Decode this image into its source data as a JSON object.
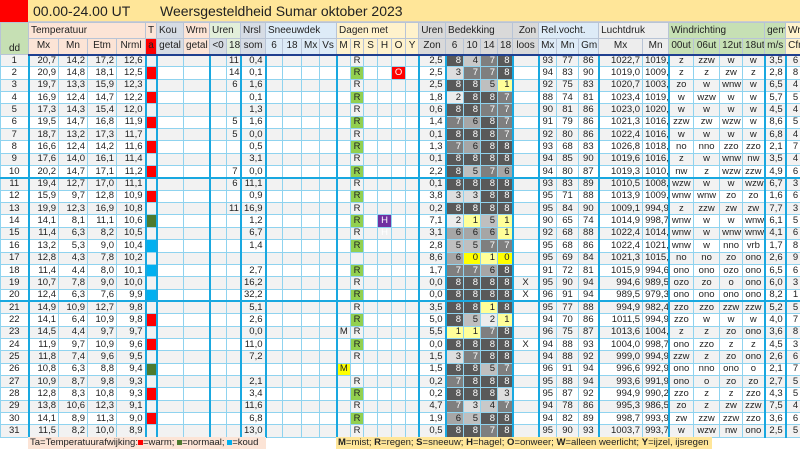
{
  "title": {
    "period": "00.00-24.00 UT",
    "name": "Weersgesteldheid Sumar oktober 2023"
  },
  "headers": {
    "dd": "dd",
    "temperatuur": "Temperatuur",
    "mx": "Mx",
    "mn": "Mn",
    "etm": "Etm",
    "nrml": "Nrml",
    "t": "T",
    "a": "a",
    "kou": "Kou",
    "kou2": "getal",
    "wrm": "Wrm",
    "wrm2": "getal",
    "uren": "Uren",
    "lt0": "<0",
    "u18": "18",
    "nrsl": "Nrsl",
    "som": "som",
    "sneeuwdek": "Sneeuwdek",
    "s6": "6",
    "s18": "18",
    "smx": "Mx",
    "vs": "Vs",
    "dagen": "Dagen met",
    "w": "W",
    "M": "M",
    "R": "R",
    "S": "S",
    "H": "H",
    "O": "O",
    "Y": "Y",
    "urenzon": "Uren",
    "zon": "Zon",
    "bedekking": "Bedekking",
    "b6": "6",
    "b10": "10",
    "b14": "14",
    "b18": "18",
    "zonloos1": "Zon",
    "zonloos2": "loos",
    "relvocht": "Rel.vocht.",
    "rvmx": "Mx",
    "rvmn": "Mn",
    "rvgm": "Gm",
    "luchtdruk": "Luchtdruk",
    "ldmx": "Mx",
    "ldmn": "Mn",
    "windrichting": "Windrichting",
    "w00": "00ut",
    "w06": "06ut",
    "w12": "12ut",
    "w18": "18ut",
    "gem": "gem",
    "ms": "m/s",
    "wr": "Wr",
    "cfr": "Cfr"
  },
  "colors": {
    "warm": "#ff0000",
    "normaal": "#4e7a2f",
    "koud": "#00b0f0",
    "regen": "#92d050",
    "mist": "#ffff00",
    "onweer": "#ff0000",
    "hagel": "#7030a0"
  },
  "rows": [
    [
      "1",
      "20,7",
      "14,2",
      "17,2",
      "12,6",
      "warm",
      "",
      "",
      "",
      "11",
      "0,4",
      "",
      "",
      "",
      "",
      "",
      "R",
      "",
      "",
      "",
      "",
      "2,5",
      "8",
      "4",
      "7",
      "8",
      "",
      "93",
      "77",
      "86",
      "1022,7",
      "1019,0",
      "z",
      "zzw",
      "w",
      "w",
      "3,5",
      "6"
    ],
    [
      "2",
      "20,9",
      "14,8",
      "18,1",
      "12,5",
      "warm",
      "",
      "",
      "",
      "14",
      "0,1",
      "",
      "",
      "",
      "",
      "",
      "R",
      "",
      "",
      "O",
      "",
      "2,5",
      "3",
      "7",
      "7",
      "8",
      "",
      "94",
      "83",
      "90",
      "1019,0",
      "1009,5",
      "z",
      "z",
      "zw",
      "z",
      "2,8",
      "8"
    ],
    [
      "3",
      "19,7",
      "13,3",
      "15,9",
      "12,3",
      "warm",
      "",
      "",
      "",
      "6",
      "1,6",
      "",
      "",
      "",
      "",
      "",
      "R",
      "",
      "",
      "",
      "",
      "2,5",
      "8",
      "8",
      "5",
      "1",
      "",
      "92",
      "75",
      "83",
      "1020,7",
      "1003,4",
      "zo",
      "w",
      "wnw",
      "w",
      "6,5",
      "4"
    ],
    [
      "4",
      "16,9",
      "12,4",
      "14,7",
      "12,2",
      "warm",
      "",
      "",
      "",
      "",
      "0,1",
      "",
      "",
      "",
      "",
      "",
      "R",
      "",
      "",
      "",
      "",
      "1,8",
      "2",
      "8",
      "8",
      "7",
      "",
      "88",
      "74",
      "81",
      "1023,4",
      "1019,6",
      "w",
      "wzw",
      "w",
      "w",
      "5,7",
      "5"
    ],
    [
      "5",
      "17,3",
      "14,3",
      "15,4",
      "12,0",
      "warm",
      "",
      "",
      "",
      "",
      "1,3",
      "",
      "",
      "",
      "",
      "",
      "R",
      "",
      "",
      "",
      "",
      "0,6",
      "8",
      "8",
      "7",
      "7",
      "",
      "90",
      "81",
      "86",
      "1023,0",
      "1020,0",
      "w",
      "w",
      "w",
      "w",
      "4,5",
      "4"
    ],
    [
      "6",
      "19,5",
      "14,7",
      "16,8",
      "11,9",
      "warm",
      "",
      "",
      "",
      "5",
      "1,6",
      "",
      "",
      "",
      "",
      "",
      "R",
      "",
      "",
      "",
      "",
      "1,4",
      "7",
      "6",
      "8",
      "7",
      "",
      "91",
      "79",
      "86",
      "1021,3",
      "1016,9",
      "zzw",
      "zw",
      "wzw",
      "w",
      "8,6",
      "5"
    ],
    [
      "7",
      "18,7",
      "13,2",
      "17,3",
      "11,7",
      "warm",
      "",
      "",
      "",
      "5",
      "0,0",
      "",
      "",
      "",
      "",
      "",
      "R",
      "",
      "",
      "",
      "",
      "0,1",
      "8",
      "8",
      "8",
      "7",
      "",
      "92",
      "80",
      "86",
      "1022,4",
      "1016,3",
      "w",
      "w",
      "w",
      "w",
      "6,8",
      "4"
    ],
    [
      "8",
      "16,6",
      "12,4",
      "14,2",
      "11,6",
      "warm",
      "",
      "",
      "",
      "",
      "0,5",
      "",
      "",
      "",
      "",
      "",
      "R",
      "",
      "",
      "",
      "",
      "1,3",
      "7",
      "6",
      "8",
      "8",
      "",
      "93",
      "68",
      "83",
      "1026,8",
      "1018,3",
      "no",
      "nno",
      "zzo",
      "zzo",
      "2,1",
      "7"
    ],
    [
      "9",
      "17,6",
      "14,0",
      "16,1",
      "11,4",
      "warm",
      "",
      "",
      "",
      "",
      "3,1",
      "",
      "",
      "",
      "",
      "",
      "R",
      "",
      "",
      "",
      "",
      "0,1",
      "8",
      "8",
      "8",
      "8",
      "",
      "94",
      "85",
      "90",
      "1019,6",
      "1016,3",
      "z",
      "w",
      "wnw",
      "nw",
      "3,5",
      "4"
    ],
    [
      "10",
      "20,2",
      "14,7",
      "17,1",
      "11,2",
      "warm",
      "",
      "",
      "",
      "7",
      "0,0",
      "",
      "",
      "",
      "",
      "",
      "R",
      "",
      "",
      "",
      "",
      "2,2",
      "8",
      "5",
      "7",
      "6",
      "",
      "94",
      "80",
      "87",
      "1019,3",
      "1010,5",
      "nw",
      "z",
      "wzw",
      "zzw",
      "4,9",
      "6"
    ],
    [
      "11",
      "19,4",
      "12,7",
      "17,0",
      "11,1",
      "warm",
      "",
      "",
      "",
      "6",
      "11,1",
      "",
      "",
      "",
      "",
      "",
      "R",
      "",
      "",
      "",
      "",
      "0,1",
      "8",
      "8",
      "8",
      "8",
      "",
      "93",
      "83",
      "89",
      "1010,5",
      "1008,1",
      "wzw",
      "w",
      "w",
      "wzw",
      "6,7",
      "3"
    ],
    [
      "12",
      "15,9",
      "9,7",
      "12,8",
      "10,9",
      "warm",
      "",
      "",
      "",
      "",
      "0,9",
      "",
      "",
      "",
      "",
      "",
      "R",
      "",
      "",
      "",
      "",
      "3,8",
      "3",
      "3",
      "8",
      "8",
      "",
      "95",
      "71",
      "88",
      "1013,9",
      "1009,1",
      "wnw",
      "wnw",
      "zo",
      "zo",
      "1,6",
      "6"
    ],
    [
      "13",
      "19,9",
      "12,3",
      "16,9",
      "10,8",
      "warm",
      "",
      "",
      "",
      "11",
      "16,9",
      "",
      "",
      "",
      "",
      "",
      "R",
      "",
      "",
      "",
      "",
      "0,2",
      "8",
      "8",
      "8",
      "8",
      "",
      "95",
      "84",
      "90",
      "1009,1",
      "994,9",
      "z",
      "zzw",
      "zw",
      "zw",
      "7,7",
      "3"
    ],
    [
      "14",
      "14,1",
      "8,1",
      "11,1",
      "10,6",
      "normaal",
      "",
      "",
      "",
      "",
      "1,2",
      "",
      "",
      "",
      "",
      "",
      "R",
      "",
      "H",
      "",
      "",
      "7,1",
      "2",
      "1",
      "5",
      "1",
      "",
      "90",
      "65",
      "74",
      "1014,9",
      "998,7",
      "wnw",
      "w",
      "w",
      "wnw",
      "6,1",
      "5"
    ],
    [
      "15",
      "11,4",
      "6,3",
      "8,2",
      "10,5",
      "koud",
      "",
      "",
      "",
      "",
      "6,7",
      "",
      "",
      "",
      "",
      "",
      "R",
      "",
      "H",
      "",
      "",
      "3,1",
      "6",
      "6",
      "6",
      "1",
      "",
      "92",
      "68",
      "88",
      "1022,4",
      "1014,6",
      "wnw",
      "w",
      "wnw",
      "wnw",
      "4,1",
      "6"
    ],
    [
      "16",
      "13,2",
      "5,3",
      "9,0",
      "10,4",
      "koud",
      "",
      "",
      "",
      "",
      "1,4",
      "",
      "",
      "",
      "",
      "",
      "R",
      "",
      "",
      "",
      "",
      "2,8",
      "5",
      "5",
      "7",
      "7",
      "",
      "95",
      "68",
      "86",
      "1022,4",
      "1021,0",
      "wnw",
      "w",
      "nno",
      "vrb",
      "1,7",
      "8"
    ],
    [
      "17",
      "12,8",
      "4,3",
      "7,8",
      "10,2",
      "koud",
      "",
      "",
      "",
      "",
      "",
      "",
      "",
      "",
      "",
      "",
      "",
      "",
      "",
      "",
      "",
      "8,6",
      "6",
      "0",
      "1",
      "0",
      "",
      "95",
      "69",
      "84",
      "1021,3",
      "1015,9",
      "no",
      "no",
      "zo",
      "ono",
      "2,6",
      "9"
    ],
    [
      "18",
      "11,4",
      "4,4",
      "8,0",
      "10,1",
      "koud",
      "",
      "",
      "",
      "",
      "2,7",
      "",
      "",
      "",
      "",
      "",
      "R",
      "",
      "",
      "",
      "",
      "1,7",
      "7",
      "7",
      "6",
      "8",
      "",
      "91",
      "72",
      "81",
      "1015,9",
      "994,6",
      "ono",
      "ono",
      "ozo",
      "ono",
      "6,5",
      "6"
    ],
    [
      "19",
      "10,7",
      "7,8",
      "9,0",
      "10,0",
      "normaal",
      "",
      "",
      "",
      "",
      "16,2",
      "",
      "",
      "",
      "",
      "",
      "R",
      "",
      "",
      "",
      "",
      "0,0",
      "8",
      "8",
      "8",
      "8",
      "X",
      "95",
      "90",
      "94",
      "994,6",
      "989,5",
      "ozo",
      "zo",
      "o",
      "ono",
      "6,0",
      "3"
    ],
    [
      "20",
      "12,4",
      "6,3",
      "7,6",
      "9,9",
      "koud",
      "",
      "",
      "",
      "",
      "32,2",
      "",
      "",
      "",
      "",
      "",
      "R",
      "",
      "",
      "",
      "",
      "0,0",
      "8",
      "8",
      "8",
      "8",
      "X",
      "96",
      "91",
      "94",
      "989,5",
      "979,3",
      "ono",
      "ono",
      "ono",
      "ono",
      "8,2",
      "1"
    ],
    [
      "21",
      "14,9",
      "10,9",
      "12,7",
      "9,8",
      "warm",
      "",
      "",
      "",
      "",
      "5,1",
      "",
      "",
      "",
      "",
      "",
      "R",
      "",
      "",
      "",
      "",
      "3,5",
      "8",
      "8",
      "1",
      "8",
      "",
      "95",
      "77",
      "88",
      "994,9",
      "982,4",
      "zzo",
      "zzo",
      "zzw",
      "zzw",
      "5,2",
      "5"
    ],
    [
      "22",
      "14,1",
      "6,4",
      "10,9",
      "9,8",
      "warm",
      "",
      "",
      "",
      "",
      "2,6",
      "",
      "",
      "",
      "",
      "",
      "R",
      "",
      "",
      "",
      "",
      "5,0",
      "8",
      "5",
      "2",
      "1",
      "",
      "94",
      "70",
      "86",
      "1011,5",
      "994,9",
      "zzo",
      "w",
      "w",
      "w",
      "4,0",
      "7"
    ],
    [
      "23",
      "14,5",
      "4,4",
      "9,7",
      "9,7",
      "normaal",
      "",
      "",
      "",
      "",
      "0,0",
      "",
      "",
      "",
      "",
      "M",
      "R",
      "",
      "",
      "",
      "",
      "5,5",
      "1",
      "1",
      "7",
      "8",
      "",
      "96",
      "75",
      "87",
      "1013,6",
      "1004,0",
      "z",
      "z",
      "zo",
      "ono",
      "3,6",
      "8"
    ],
    [
      "24",
      "11,9",
      "9,7",
      "10,9",
      "9,6",
      "warm",
      "",
      "",
      "",
      "",
      "11,0",
      "",
      "",
      "",
      "",
      "",
      "R",
      "",
      "",
      "",
      "",
      "0,0",
      "8",
      "8",
      "8",
      "8",
      "X",
      "94",
      "88",
      "93",
      "1004,0",
      "998,7",
      "ono",
      "zzo",
      "z",
      "z",
      "4,5",
      "3"
    ],
    [
      "25",
      "11,8",
      "7,4",
      "9,6",
      "9,5",
      "normaal",
      "",
      "",
      "",
      "",
      "7,2",
      "",
      "",
      "",
      "",
      "",
      "R",
      "",
      "",
      "",
      "",
      "1,5",
      "3",
      "7",
      "8",
      "8",
      "",
      "94",
      "88",
      "92",
      "999,0",
      "994,9",
      "zzw",
      "z",
      "zo",
      "ono",
      "2,6",
      "6"
    ],
    [
      "26",
      "10,8",
      "6,3",
      "8,8",
      "9,4",
      "normaal",
      "",
      "",
      "",
      "",
      "",
      "",
      "",
      "",
      "",
      "M",
      "",
      "",
      "",
      "",
      "",
      "1,5",
      "8",
      "8",
      "5",
      "7",
      "",
      "96",
      "91",
      "94",
      "996,6",
      "992,9",
      "ono",
      "nno",
      "ono",
      "o",
      "2,1",
      "7"
    ],
    [
      "27",
      "10,9",
      "8,7",
      "9,8",
      "9,3",
      "normaal",
      "",
      "",
      "",
      "",
      "2,1",
      "",
      "",
      "",
      "",
      "",
      "R",
      "",
      "",
      "",
      "",
      "0,2",
      "7",
      "8",
      "8",
      "8",
      "",
      "95",
      "88",
      "94",
      "993,6",
      "991,9",
      "ono",
      "o",
      "zo",
      "zo",
      "2,7",
      "5"
    ],
    [
      "28",
      "12,8",
      "8,3",
      "10,8",
      "9,3",
      "warm",
      "",
      "",
      "",
      "",
      "3,4",
      "",
      "",
      "",
      "",
      "",
      "R",
      "",
      "",
      "",
      "",
      "0,2",
      "8",
      "8",
      "8",
      "3",
      "",
      "95",
      "87",
      "92",
      "994,9",
      "990,2",
      "zzo",
      "z",
      "z",
      "zzo",
      "4,3",
      "5"
    ],
    [
      "29",
      "13,8",
      "10,6",
      "12,3",
      "9,1",
      "warm",
      "",
      "",
      "",
      "",
      "11,6",
      "",
      "",
      "",
      "",
      "",
      "R",
      "",
      "",
      "",
      "",
      "4,7",
      "7",
      "3",
      "4",
      "7",
      "",
      "94",
      "78",
      "86",
      "995,3",
      "986,5",
      "zo",
      "z",
      "zw",
      "zzw",
      "7,5",
      "4"
    ],
    [
      "30",
      "14,1",
      "8,9",
      "11,3",
      "9,0",
      "warm",
      "",
      "",
      "",
      "",
      "6,8",
      "",
      "",
      "",
      "",
      "",
      "R",
      "",
      "",
      "",
      "",
      "1,9",
      "6",
      "5",
      "8",
      "8",
      "",
      "94",
      "82",
      "89",
      "998,7",
      "993,9",
      "zw",
      "zzw",
      "zzw",
      "zzo",
      "3,6",
      "6"
    ],
    [
      "31",
      "11,5",
      "8,2",
      "10,0",
      "8,9",
      "warm",
      "",
      "",
      "",
      "",
      "13,0",
      "",
      "",
      "",
      "",
      "",
      "R",
      "",
      "",
      "",
      "",
      "0,5",
      "8",
      "8",
      "7",
      "8",
      "",
      "95",
      "90",
      "93",
      "1003,7",
      "993,7",
      "w",
      "wzw",
      "nw",
      "ono",
      "2,5",
      "5"
    ]
  ],
  "footer": {
    "ta_label": "Ta=Temperatuurafwijking:",
    "warm": "=warm;",
    "normaal": "=normaal;",
    "koud": "=koud",
    "legend": [
      {
        "k": "M",
        "v": "=mist; "
      },
      {
        "k": "R",
        "v": "=regen; "
      },
      {
        "k": "S",
        "v": "=sneeuw; "
      },
      {
        "k": "H",
        "v": "=hagel; "
      },
      {
        "k": "O",
        "v": "=onweer; "
      },
      {
        "k": "W",
        "v": "=alleen weerlicht; "
      },
      {
        "k": "Y",
        "v": "=ijzel, ijsregen"
      }
    ]
  }
}
